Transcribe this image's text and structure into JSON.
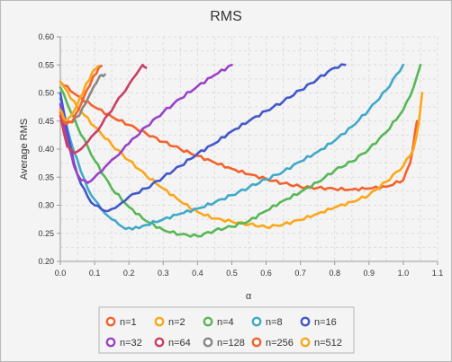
{
  "chart_data": {
    "type": "line",
    "title": "RMS",
    "xlabel": "α",
    "ylabel": "Average RMS",
    "xlim": [
      0.0,
      1.1
    ],
    "ylim": [
      0.2,
      0.6
    ],
    "x_ticks": [
      "0.0",
      "0.1",
      "0.2",
      "0.3",
      "0.4",
      "0.5",
      "0.6",
      "0.7",
      "0.8",
      "0.9",
      "1.0",
      "1.1"
    ],
    "y_ticks": [
      "0.20",
      "0.25",
      "0.30",
      "0.35",
      "0.40",
      "0.45",
      "0.50",
      "0.55",
      "0.60"
    ],
    "grid": true,
    "legend_position": "bottom",
    "series": [
      {
        "name": "n=1",
        "color": "#f3622d",
        "x": [
          0.0,
          0.05,
          0.1,
          0.15,
          0.2,
          0.25,
          0.3,
          0.35,
          0.4,
          0.45,
          0.5,
          0.55,
          0.6,
          0.65,
          0.7,
          0.75,
          0.8,
          0.85,
          0.9,
          0.95,
          1.0,
          1.02,
          1.03,
          1.04
        ],
        "y": [
          0.52,
          0.495,
          0.475,
          0.458,
          0.443,
          0.428,
          0.413,
          0.4,
          0.388,
          0.376,
          0.365,
          0.355,
          0.347,
          0.339,
          0.333,
          0.331,
          0.329,
          0.328,
          0.33,
          0.333,
          0.345,
          0.375,
          0.41,
          0.45
        ]
      },
      {
        "name": "n=2",
        "color": "#fba71b",
        "x": [
          0.0,
          0.05,
          0.1,
          0.15,
          0.2,
          0.25,
          0.3,
          0.35,
          0.4,
          0.45,
          0.5,
          0.55,
          0.6,
          0.65,
          0.7,
          0.75,
          0.8,
          0.85,
          0.9,
          0.95,
          1.0,
          1.03,
          1.045,
          1.055
        ],
        "y": [
          0.52,
          0.475,
          0.44,
          0.408,
          0.38,
          0.353,
          0.33,
          0.307,
          0.288,
          0.276,
          0.271,
          0.266,
          0.261,
          0.266,
          0.274,
          0.285,
          0.296,
          0.306,
          0.318,
          0.342,
          0.37,
          0.4,
          0.445,
          0.5
        ]
      },
      {
        "name": "n=4",
        "color": "#57b757",
        "x": [
          0.0,
          0.05,
          0.1,
          0.15,
          0.2,
          0.25,
          0.3,
          0.35,
          0.4,
          0.45,
          0.5,
          0.55,
          0.6,
          0.65,
          0.7,
          0.75,
          0.8,
          0.85,
          0.9,
          0.95,
          1.0,
          1.03,
          1.05
        ],
        "y": [
          0.51,
          0.44,
          0.38,
          0.33,
          0.297,
          0.272,
          0.256,
          0.248,
          0.245,
          0.255,
          0.262,
          0.272,
          0.29,
          0.308,
          0.323,
          0.341,
          0.362,
          0.378,
          0.4,
          0.43,
          0.47,
          0.51,
          0.55
        ]
      },
      {
        "name": "n=8",
        "color": "#41a9c9",
        "x": [
          0.0,
          0.03,
          0.06,
          0.09,
          0.12,
          0.15,
          0.18,
          0.21,
          0.25,
          0.3,
          0.35,
          0.4,
          0.45,
          0.5,
          0.55,
          0.6,
          0.65,
          0.7,
          0.75,
          0.8,
          0.85,
          0.9,
          0.95,
          1.0
        ],
        "y": [
          0.49,
          0.415,
          0.36,
          0.318,
          0.293,
          0.275,
          0.262,
          0.257,
          0.265,
          0.275,
          0.285,
          0.294,
          0.305,
          0.318,
          0.332,
          0.346,
          0.36,
          0.378,
          0.395,
          0.415,
          0.44,
          0.47,
          0.505,
          0.55
        ]
      },
      {
        "name": "n=16",
        "color": "#4258c9",
        "x": [
          0.0,
          0.02,
          0.04,
          0.06,
          0.08,
          0.1,
          0.12,
          0.14,
          0.16,
          0.18,
          0.2,
          0.25,
          0.3,
          0.35,
          0.4,
          0.45,
          0.5,
          0.55,
          0.6,
          0.65,
          0.7,
          0.75,
          0.8,
          0.83
        ],
        "y": [
          0.5,
          0.432,
          0.375,
          0.338,
          0.315,
          0.3,
          0.293,
          0.29,
          0.295,
          0.305,
          0.315,
          0.33,
          0.35,
          0.37,
          0.392,
          0.41,
          0.432,
          0.45,
          0.468,
          0.485,
          0.505,
          0.525,
          0.545,
          0.55
        ]
      },
      {
        "name": "n=32",
        "color": "#9a42c8",
        "x": [
          0.0,
          0.02,
          0.04,
          0.06,
          0.08,
          0.1,
          0.13,
          0.16,
          0.2,
          0.25,
          0.3,
          0.35,
          0.4,
          0.45,
          0.5
        ],
        "y": [
          0.48,
          0.415,
          0.37,
          0.345,
          0.34,
          0.35,
          0.368,
          0.385,
          0.41,
          0.44,
          0.466,
          0.49,
          0.512,
          0.532,
          0.55
        ]
      },
      {
        "name": "n=64",
        "color": "#c84164",
        "x": [
          0.0,
          0.02,
          0.04,
          0.06,
          0.08,
          0.1,
          0.12,
          0.14,
          0.16,
          0.18,
          0.2,
          0.22,
          0.24,
          0.25
        ],
        "y": [
          0.46,
          0.405,
          0.393,
          0.4,
          0.413,
          0.428,
          0.443,
          0.462,
          0.48,
          0.497,
          0.515,
          0.532,
          0.55,
          0.545
        ]
      },
      {
        "name": "n=128",
        "color": "#888888",
        "x": [
          0.0,
          0.01,
          0.02,
          0.03,
          0.04,
          0.05,
          0.06,
          0.07,
          0.08,
          0.09,
          0.1,
          0.11,
          0.12,
          0.13
        ],
        "y": [
          0.47,
          0.452,
          0.447,
          0.448,
          0.452,
          0.458,
          0.466,
          0.478,
          0.49,
          0.502,
          0.514,
          0.524,
          0.532,
          0.533
        ]
      },
      {
        "name": "n=256",
        "color": "#f3622d",
        "x": [
          0.0,
          0.01,
          0.02,
          0.03,
          0.04,
          0.05,
          0.06,
          0.07,
          0.08,
          0.09,
          0.1,
          0.11,
          0.12
        ],
        "y": [
          0.465,
          0.45,
          0.445,
          0.448,
          0.455,
          0.467,
          0.48,
          0.495,
          0.508,
          0.52,
          0.532,
          0.542,
          0.548
        ]
      },
      {
        "name": "n=512",
        "color": "#fba71b",
        "x": [
          0.0,
          0.01,
          0.02,
          0.03,
          0.04,
          0.05,
          0.06,
          0.07,
          0.08,
          0.09,
          0.1,
          0.11
        ],
        "y": [
          0.47,
          0.455,
          0.452,
          0.458,
          0.468,
          0.48,
          0.494,
          0.508,
          0.52,
          0.532,
          0.542,
          0.548
        ]
      }
    ]
  }
}
